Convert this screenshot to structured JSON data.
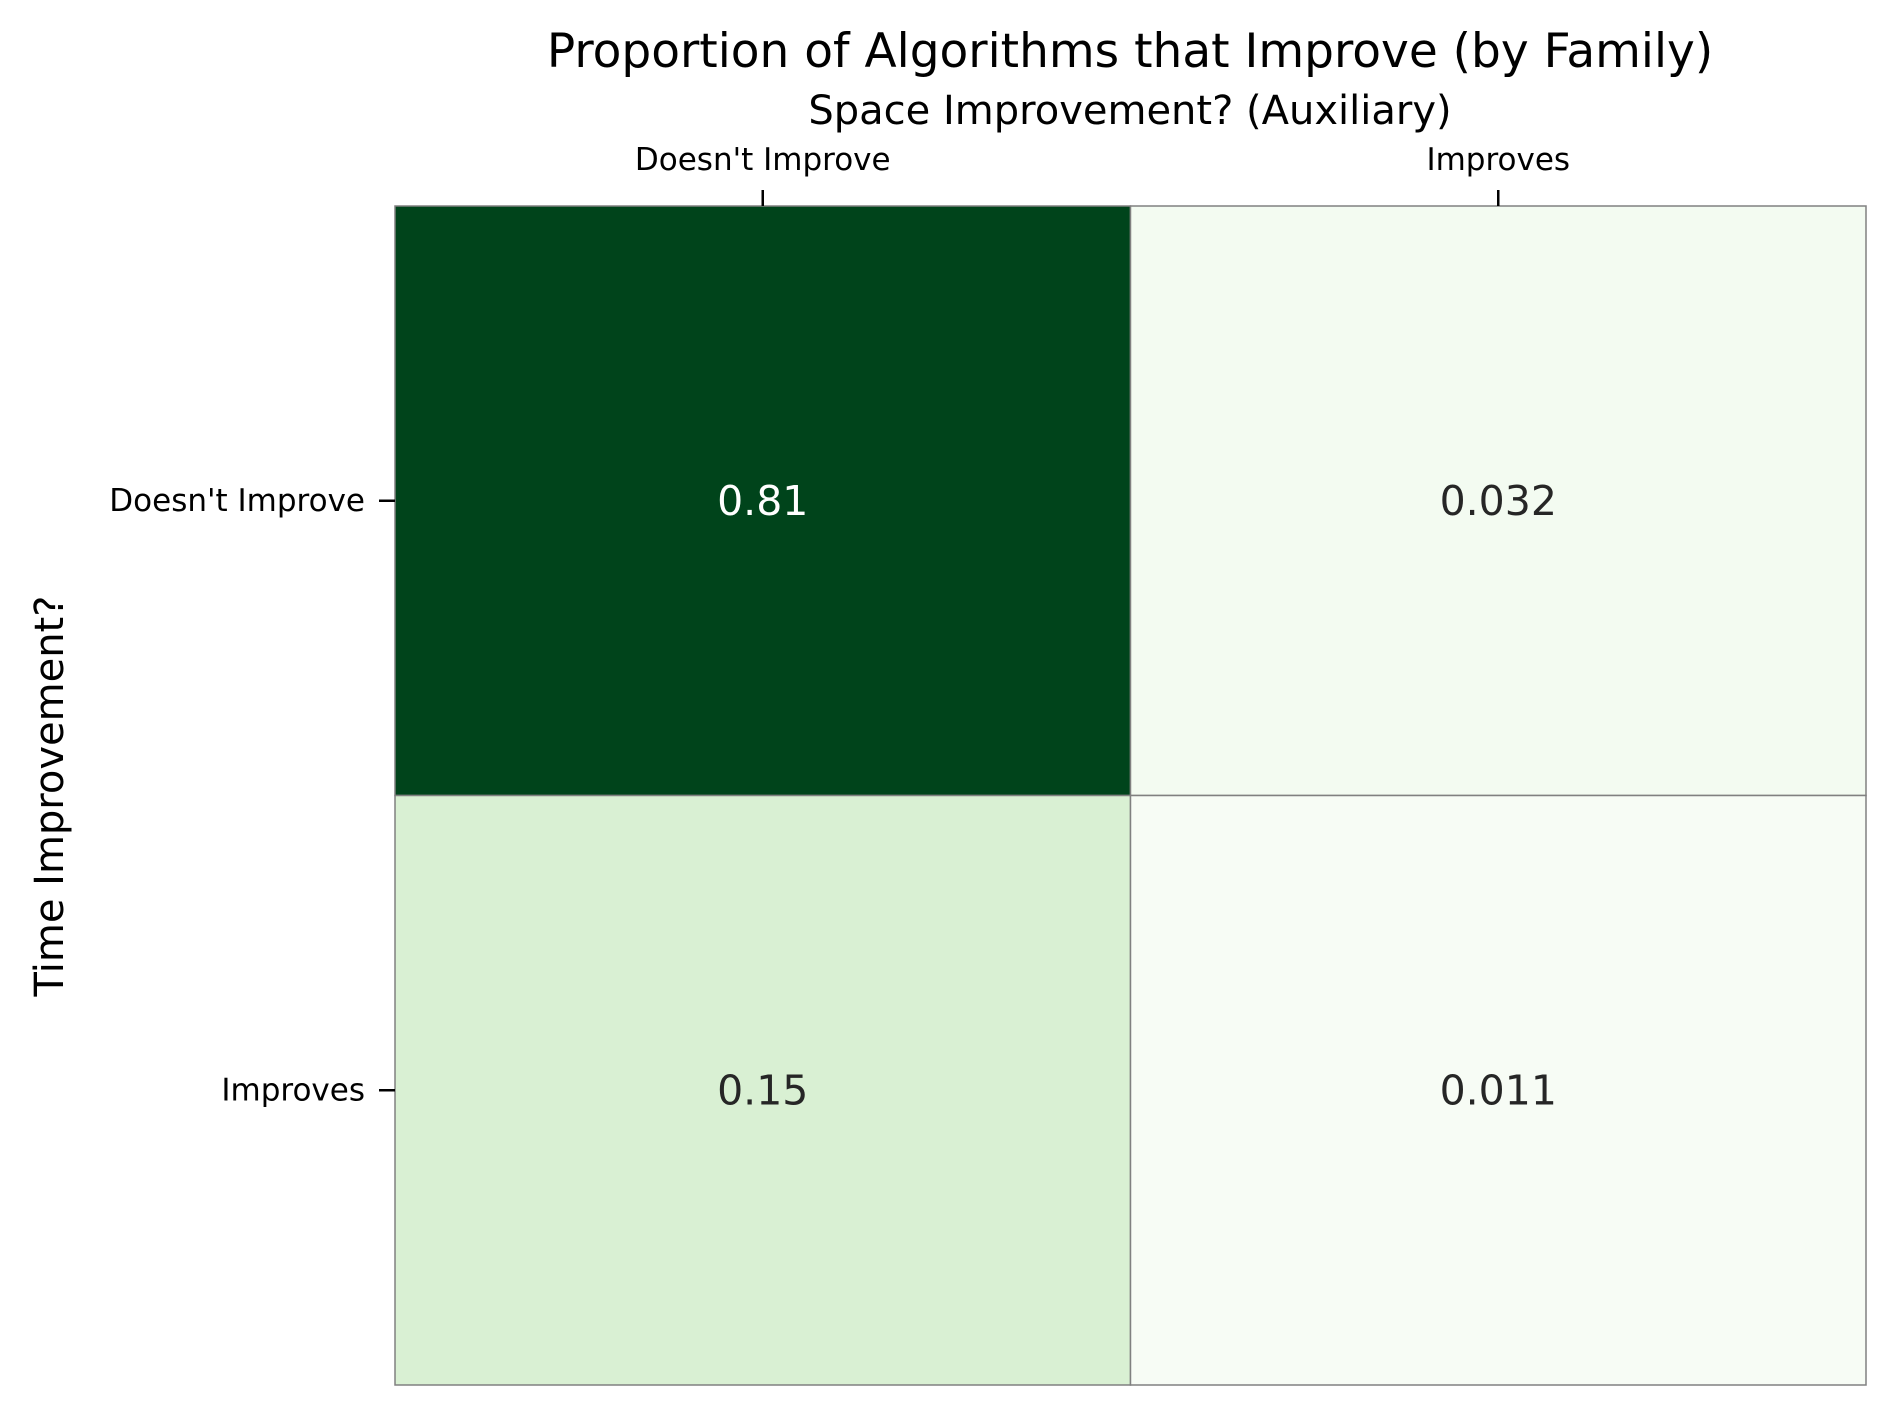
{
  "chart_data": {
    "type": "heatmap",
    "title": "Proportion of Algorithms that Improve (by Family)",
    "xlabel": "Space Improvement? (Auxiliary)",
    "ylabel": "Time Improvement?",
    "x_categories": [
      "Doesn't Improve",
      "Improves"
    ],
    "y_categories": [
      "Doesn't Improve",
      "Improves"
    ],
    "values": [
      [
        0.81,
        0.032
      ],
      [
        0.15,
        0.011
      ]
    ],
    "value_labels": [
      [
        "0.81",
        "0.032"
      ],
      [
        "0.15",
        "0.011"
      ]
    ],
    "colormap": "Greens",
    "xaxis_position": "top",
    "grid": false,
    "legend": "none",
    "colors": {
      "low": "#f7fcf5",
      "mid_low": "#e5f5e0",
      "mid": "#a1d99b",
      "mid_high": "#41ab5d",
      "high": "#00441b",
      "cell_border": "#808080",
      "text_dark": "#262626",
      "text_light": "#ffffff"
    }
  }
}
